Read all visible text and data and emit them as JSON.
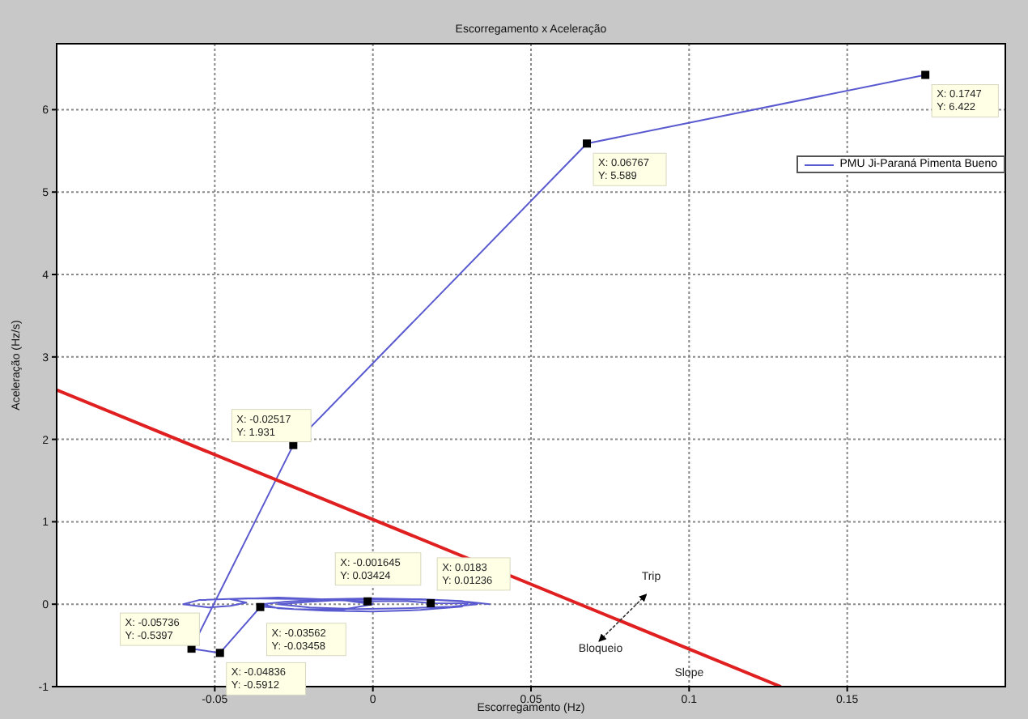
{
  "chart_data": {
    "type": "line",
    "title": "Escorregamento x Aceleração",
    "xlabel": "Escorregamento (Hz)",
    "ylabel": "Aceleração (Hz/s)",
    "xlim": [
      -0.1,
      0.2
    ],
    "xticks": [
      -0.05,
      0,
      0.05,
      0.1,
      0.15
    ],
    "ylim": [
      -1,
      6.8
    ],
    "yticks": [
      -1,
      0,
      1,
      2,
      3,
      4,
      5,
      6
    ],
    "grid": true,
    "legend": "top right",
    "line_style": "solid",
    "marker": "none",
    "series": [
      {
        "name": "PMU Ji-Paraná Pimenta Bueno",
        "color": "#5a5ad0",
        "x": [
          0.037,
          0.03,
          0.02,
          0.005,
          -0.01,
          -0.02,
          -0.03,
          -0.02,
          -0.005,
          0.01,
          0.025,
          0.033,
          0.028,
          0.015,
          0.0,
          -0.015,
          -0.028,
          -0.035,
          -0.03,
          -0.015,
          0.0,
          0.015,
          0.028,
          0.03,
          0.0183,
          0.01,
          -0.001645,
          -0.02,
          -0.04,
          -0.055,
          -0.06,
          -0.052,
          -0.045,
          -0.04,
          -0.045,
          -0.03,
          -0.01,
          0.0,
          -0.01,
          -0.025,
          -0.035,
          -0.03562,
          -0.04836,
          -0.05736,
          -0.02517,
          0.06767,
          0.1747
        ],
        "values": [
          0.0,
          0.03,
          0.05,
          0.06,
          0.05,
          0.03,
          0.0,
          -0.04,
          -0.06,
          -0.05,
          -0.03,
          0.0,
          0.04,
          0.06,
          0.07,
          0.06,
          0.03,
          0.0,
          -0.05,
          -0.08,
          -0.09,
          -0.07,
          -0.03,
          0.01,
          0.01236,
          0.04,
          0.03424,
          0.06,
          0.07,
          0.05,
          0.0,
          -0.04,
          -0.02,
          0.02,
          0.06,
          0.08,
          0.05,
          0.0,
          -0.07,
          -0.06,
          -0.03,
          -0.03458,
          -0.5912,
          -0.5397,
          1.931,
          5.589,
          6.422
        ]
      },
      {
        "color": "#e02020",
        "x": [
          -0.1,
          0.129
        ],
        "values": [
          2.6,
          -1
        ]
      }
    ],
    "annotations": [
      {
        "text": "X: 0.1747\nY: 6.422",
        "x": 0.1747,
        "y": 6.422
      },
      {
        "text": "X: 0.06767\nY: 5.589",
        "x": 0.06767,
        "y": 5.589
      },
      {
        "text": "X: -0.02517\nY: 1.931",
        "x": -0.02517,
        "y": 1.931
      },
      {
        "text": "X: -0.001645\nY: 0.03424",
        "x": -0.001645,
        "y": 0.03424
      },
      {
        "text": "X: 0.0183\nY: 0.01236",
        "x": 0.0183,
        "y": 0.01236
      },
      {
        "text": "X: -0.03562\nY: -0.03458",
        "x": -0.03562,
        "y": -0.03458
      },
      {
        "text": "X: -0.05736\nY: -0.5397",
        "x": -0.05736,
        "y": -0.5397
      },
      {
        "text": "X: -0.04836\nY: -0.5912",
        "x": -0.04836,
        "y": -0.5912
      },
      "Trip",
      "Bloqueio",
      "Slope"
    ]
  }
}
